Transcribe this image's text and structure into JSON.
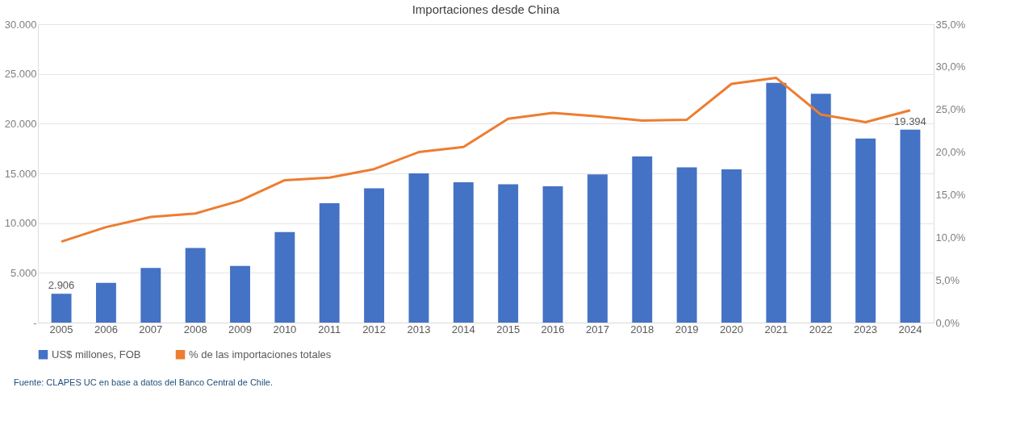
{
  "chart_data": {
    "type": "bar",
    "title": "Importaciones desde China",
    "categories": [
      "2005",
      "2006",
      "2007",
      "2008",
      "2009",
      "2010",
      "2011",
      "2012",
      "2013",
      "2014",
      "2015",
      "2016",
      "2017",
      "2018",
      "2019",
      "2020",
      "2021",
      "2022",
      "2023",
      "2024"
    ],
    "series": [
      {
        "name": "US$ millones, FOB",
        "color": "#4472c4",
        "values": [
          2906,
          4000,
          5500,
          7500,
          5700,
          9100,
          12000,
          13500,
          15000,
          14100,
          13900,
          13700,
          14900,
          16700,
          15600,
          15400,
          24100,
          23000,
          18500,
          19394
        ],
        "value_labels": [
          "2.906",
          null,
          null,
          null,
          null,
          null,
          null,
          null,
          null,
          null,
          null,
          null,
          null,
          null,
          null,
          null,
          null,
          null,
          null,
          "19.394"
        ]
      },
      {
        "name": "% de las importaciones totales",
        "type": "line",
        "axis": "y2",
        "color": "#ed7d31",
        "values": [
          9.5,
          11.2,
          12.4,
          12.8,
          14.3,
          16.7,
          17.0,
          18.0,
          20.0,
          20.6,
          23.9,
          24.6,
          24.2,
          23.7,
          23.8,
          28.0,
          28.7,
          24.4,
          23.5,
          24.9
        ]
      }
    ],
    "ylim": [
      0,
      30000
    ],
    "yticks": [
      {
        "value": 0,
        "label": "-"
      },
      {
        "value": 5000,
        "label": "5.000"
      },
      {
        "value": 10000,
        "label": "10.000"
      },
      {
        "value": 15000,
        "label": "15.000"
      },
      {
        "value": 20000,
        "label": "20.000"
      },
      {
        "value": 25000,
        "label": "25.000"
      },
      {
        "value": 30000,
        "label": "30.000"
      }
    ],
    "y2lim": [
      0,
      35
    ],
    "y2ticks": [
      {
        "value": 0,
        "label": "0,0%"
      },
      {
        "value": 5,
        "label": "5,0%"
      },
      {
        "value": 10,
        "label": "10,0%"
      },
      {
        "value": 15,
        "label": "15,0%"
      },
      {
        "value": 20,
        "label": "20,0%"
      },
      {
        "value": 25,
        "label": "25,0%"
      },
      {
        "value": 30,
        "label": "30,0%"
      },
      {
        "value": 35,
        "label": "35,0%"
      }
    ],
    "grid": "y",
    "legend": "bottom",
    "annotations": [
      "Fuente: CLAPES UC en base a datos del Banco Central de Chile."
    ]
  }
}
